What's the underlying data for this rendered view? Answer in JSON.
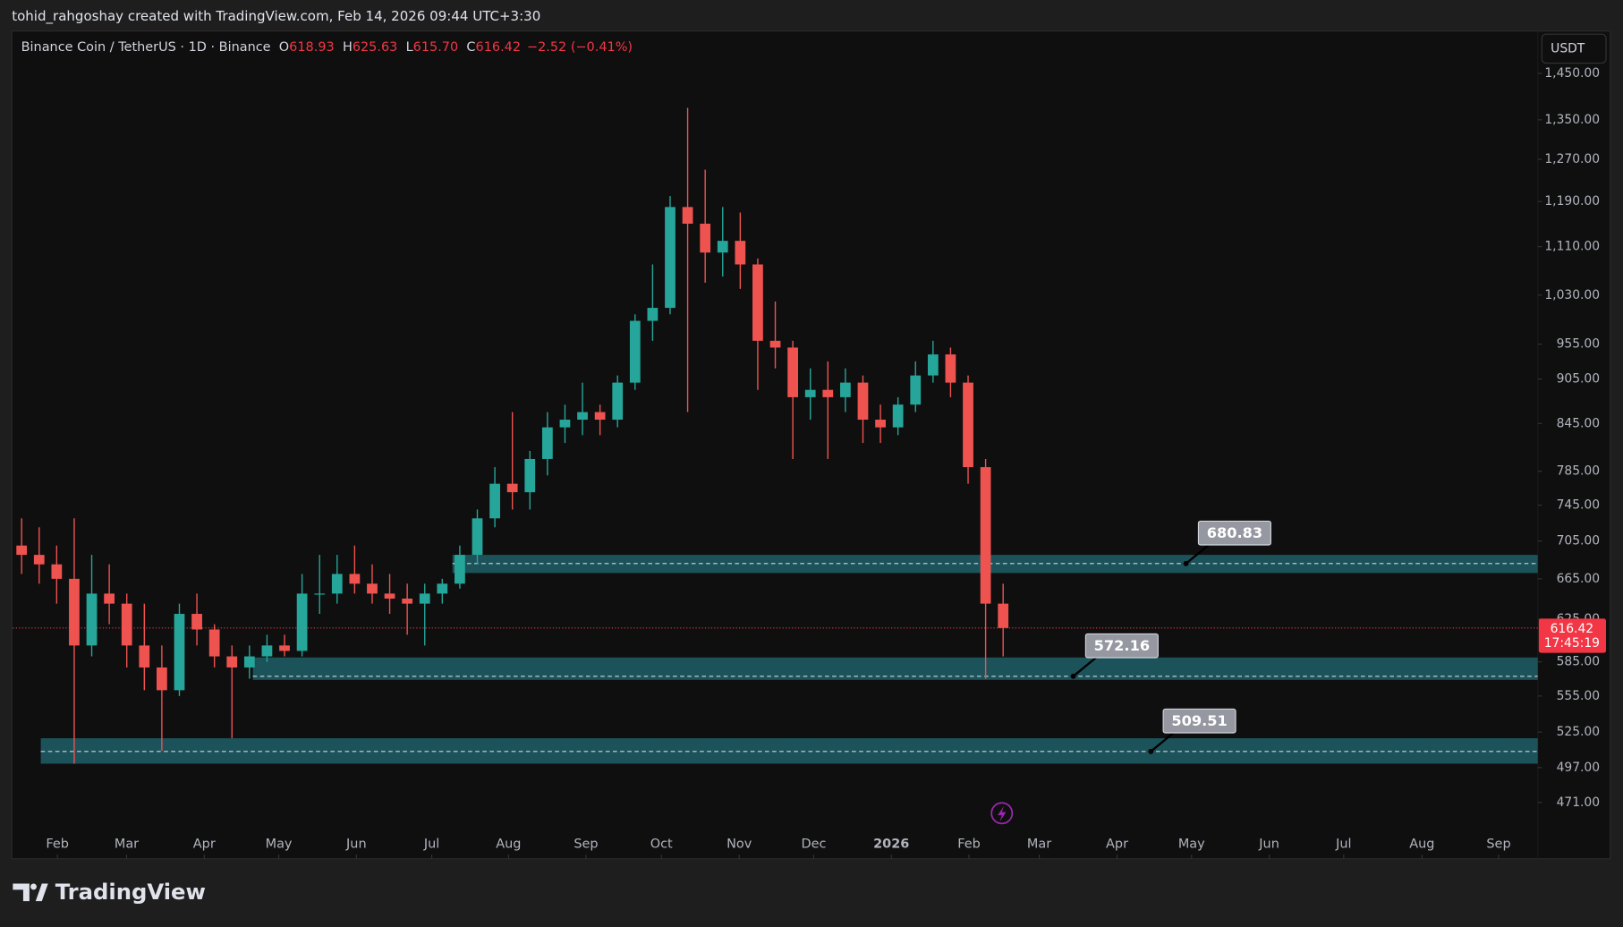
{
  "header": {
    "credit": "tohid_rahgoshay created with TradingView.com, Feb 14, 2026 09:44 UTC+3:30",
    "symbol": "Binance Coin / TetherUS · 1D · Binance",
    "ohlc": [
      {
        "key": "O",
        "value": "618.93"
      },
      {
        "key": "H",
        "value": "625.63"
      },
      {
        "key": "L",
        "value": "615.70"
      },
      {
        "key": "C",
        "value": "616.42"
      }
    ],
    "change": "−2.52 (−0.41%)",
    "currency": "USDT",
    "timer": "17:45:19",
    "logo": "TradingView"
  },
  "chart_data": {
    "type": "candlestick",
    "log_scale": true,
    "up_color": "#26a69a",
    "down_color": "#ef5350",
    "zone_color": "#1f5f69",
    "last_price": {
      "value": 616.42,
      "label": "616.42",
      "color": "#f23645"
    },
    "open": [
      700,
      690,
      680,
      665,
      600,
      650,
      640,
      600,
      580,
      560,
      630,
      615,
      590,
      580,
      590,
      600,
      595,
      650,
      650,
      670,
      660,
      650,
      645,
      640,
      650,
      660,
      690,
      730,
      770,
      760,
      800,
      840,
      850,
      860,
      850,
      900,
      990,
      1010,
      1180,
      1150,
      1100,
      1120,
      1080,
      960,
      950,
      880,
      890,
      880,
      900,
      850,
      840,
      870,
      910,
      940,
      900,
      790,
      640
    ],
    "high": [
      730,
      720,
      700,
      730,
      690,
      680,
      650,
      640,
      600,
      640,
      650,
      620,
      600,
      600,
      610,
      610,
      670,
      690,
      690,
      700,
      680,
      670,
      660,
      660,
      665,
      700,
      740,
      790,
      860,
      810,
      860,
      870,
      900,
      870,
      910,
      1000,
      1080,
      1200,
      1375,
      1250,
      1180,
      1170,
      1090,
      1020,
      960,
      920,
      930,
      920,
      910,
      870,
      880,
      930,
      960,
      950,
      910,
      800,
      660
    ],
    "low": [
      670,
      660,
      640,
      500,
      590,
      620,
      580,
      560,
      510,
      555,
      600,
      580,
      520,
      570,
      585,
      590,
      590,
      630,
      640,
      650,
      640,
      630,
      610,
      600,
      640,
      655,
      680,
      720,
      740,
      740,
      780,
      820,
      830,
      830,
      840,
      890,
      960,
      1000,
      860,
      1050,
      1060,
      1040,
      890,
      920,
      800,
      850,
      800,
      860,
      820,
      820,
      830,
      860,
      900,
      880,
      770,
      570,
      590
    ],
    "close": [
      690,
      680,
      665,
      600,
      650,
      640,
      600,
      580,
      560,
      630,
      615,
      590,
      580,
      590,
      600,
      595,
      650,
      650,
      670,
      660,
      650,
      645,
      640,
      650,
      660,
      690,
      730,
      770,
      760,
      800,
      840,
      850,
      860,
      850,
      900,
      990,
      1010,
      1180,
      1150,
      1100,
      1120,
      1080,
      960,
      950,
      880,
      890,
      880,
      900,
      850,
      840,
      870,
      910,
      940,
      900,
      790,
      640,
      616.42
    ],
    "xlim": [
      0,
      87
    ],
    "xticks": [
      {
        "value": 2.54,
        "label": "Feb"
      },
      {
        "value": 6.49,
        "label": "Mar"
      },
      {
        "value": 10.92,
        "label": "Apr"
      },
      {
        "value": 15.17,
        "label": "May"
      },
      {
        "value": 19.6,
        "label": "Jun"
      },
      {
        "value": 23.9,
        "label": "Jul"
      },
      {
        "value": 28.28,
        "label": "Aug"
      },
      {
        "value": 32.7,
        "label": "Sep"
      },
      {
        "value": 37.0,
        "label": "Oct"
      },
      {
        "value": 41.44,
        "label": "Nov"
      },
      {
        "value": 45.69,
        "label": "Dec"
      },
      {
        "value": 50.12,
        "label": "2026"
      },
      {
        "value": 54.55,
        "label": "Feb"
      },
      {
        "value": 58.56,
        "label": "Mar"
      },
      {
        "value": 63.0,
        "label": "Apr"
      },
      {
        "value": 67.25,
        "label": "May"
      },
      {
        "value": 71.68,
        "label": "Jun"
      },
      {
        "value": 75.93,
        "label": "Jul"
      },
      {
        "value": 80.4,
        "label": "Aug"
      },
      {
        "value": 84.77,
        "label": "Sep"
      }
    ],
    "ylim": [
      453,
      1548
    ],
    "yticks": [
      {
        "value": 1450,
        "label": "1,450.00"
      },
      {
        "value": 1350,
        "label": "1,350.00"
      },
      {
        "value": 1270,
        "label": "1,270.00"
      },
      {
        "value": 1190,
        "label": "1,190.00"
      },
      {
        "value": 1110,
        "label": "1,110.00"
      },
      {
        "value": 1030,
        "label": "1,030.00"
      },
      {
        "value": 955,
        "label": "955.00"
      },
      {
        "value": 905,
        "label": "905.00"
      },
      {
        "value": 845,
        "label": "845.00"
      },
      {
        "value": 785,
        "label": "785.00"
      },
      {
        "value": 745,
        "label": "745.00"
      },
      {
        "value": 705,
        "label": "705.00"
      },
      {
        "value": 665,
        "label": "665.00"
      },
      {
        "value": 625,
        "label": "625.00"
      },
      {
        "value": 585,
        "label": "585.00"
      },
      {
        "value": 555,
        "label": "555.00"
      },
      {
        "value": 525,
        "label": "525.00"
      },
      {
        "value": 497,
        "label": "497.00"
      },
      {
        "value": 471,
        "label": "471.00"
      }
    ],
    "zones": [
      {
        "level": 680.83,
        "label": "680.83",
        "low": 671,
        "high": 690
      },
      {
        "level": 572.16,
        "label": "572.16",
        "low": 569,
        "high": 589
      },
      {
        "level": 509.51,
        "label": "509.51",
        "low": 500,
        "high": 520
      }
    ]
  }
}
